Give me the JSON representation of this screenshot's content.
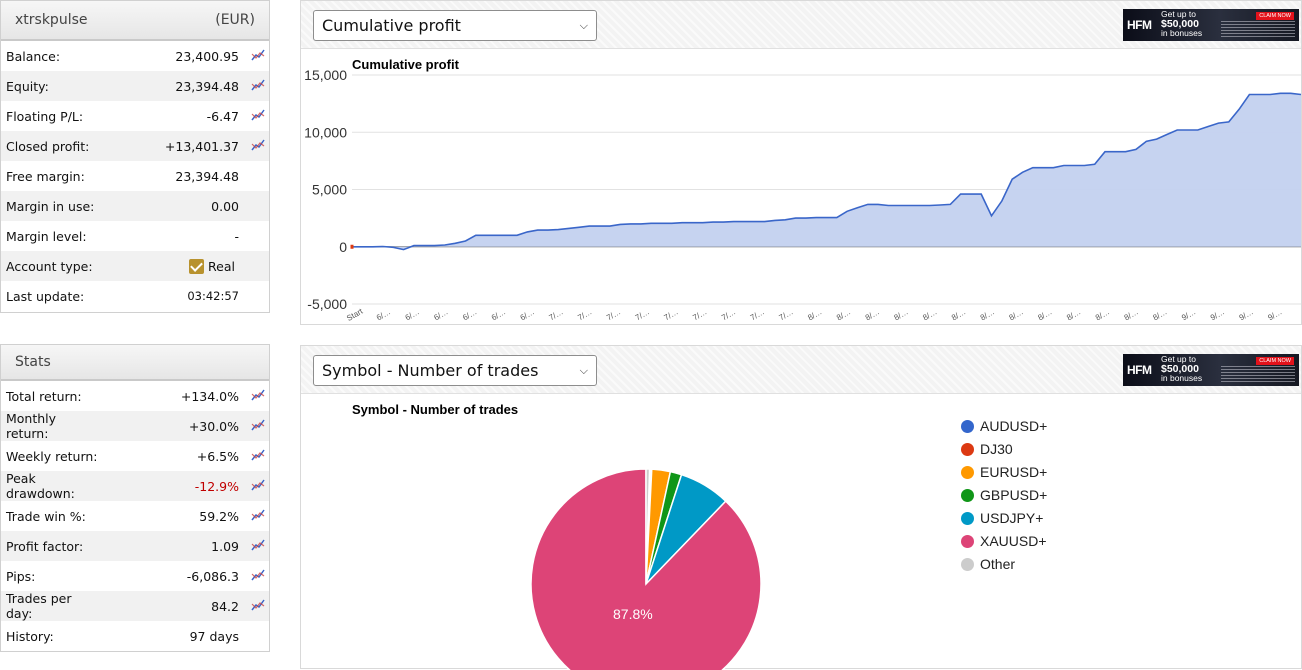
{
  "account": {
    "name": "xtrskpulse",
    "currency": "(EUR)",
    "rows": [
      {
        "label": "Balance:",
        "value": "23,400.95",
        "chart": true
      },
      {
        "label": "Equity:",
        "value": "23,394.48",
        "chart": true
      },
      {
        "label": "Floating P/L:",
        "value": "-6.47",
        "chart": true
      },
      {
        "label": "Closed profit:",
        "value": "+13,401.37",
        "chart": true
      },
      {
        "label": "Free margin:",
        "value": "23,394.48",
        "chart": false
      },
      {
        "label": "Margin in use:",
        "value": "0.00",
        "chart": false
      },
      {
        "label": "Margin level:",
        "value": "-",
        "chart": false
      },
      {
        "label": "Account type:",
        "value": "Real",
        "chart": false,
        "checkbox": true
      },
      {
        "label": "Last update:",
        "value": "03:42:57",
        "chart": false,
        "small": true
      }
    ]
  },
  "stats": {
    "title": "Stats",
    "rows": [
      {
        "label": "Total return:",
        "value": "+134.0%",
        "chart": true
      },
      {
        "label": "Monthly return:",
        "value": "+30.0%",
        "chart": true
      },
      {
        "label": "Weekly return:",
        "value": "+6.5%",
        "chart": true
      },
      {
        "label": "Peak drawdown:",
        "value": "-12.9%",
        "chart": true,
        "negative": true
      },
      {
        "label": "Trade win %:",
        "value": "59.2%",
        "chart": true
      },
      {
        "label": "Profit factor:",
        "value": "1.09",
        "chart": true
      },
      {
        "label": "Pips:",
        "value": "-6,086.3",
        "chart": true
      },
      {
        "label": "Trades per day:",
        "value": "84.2",
        "chart": true
      },
      {
        "label": "History:",
        "value": "97 days",
        "chart": false
      }
    ]
  },
  "colors": {
    "line": "#3a66c9",
    "area": "#c3d1ef",
    "chart_icon": "#3a66c9"
  },
  "ad": {
    "logo": "HFM",
    "line1": "Get up to",
    "line2": "$50,000",
    "line3": "in bonuses",
    "cta": "CLAIM NOW"
  },
  "chart_data": [
    {
      "type": "area",
      "selector_label": "Cumulative profit",
      "title": "Cumulative profit",
      "ylim": [
        -5000,
        15000
      ],
      "yticks": [
        -5000,
        0,
        5000,
        10000,
        15000
      ],
      "ytick_labels": [
        "-5,000",
        "0",
        "5,000",
        "10,000",
        "15,000"
      ],
      "xtick_labels": [
        "Start",
        "6/…",
        "6/…",
        "6/…",
        "6/…",
        "6/…",
        "6/…",
        "7/…",
        "7/…",
        "7/…",
        "7/…",
        "7/…",
        "7/…",
        "7/…",
        "7/…",
        "7/…",
        "8/…",
        "8/…",
        "8/…",
        "8/…",
        "8/…",
        "8/…",
        "8/…",
        "8/…",
        "8/…",
        "8/…",
        "8/…",
        "8/…",
        "8/…",
        "9/…",
        "9/…",
        "9/…",
        "9/…"
      ],
      "y": [
        0,
        0,
        0,
        20,
        -50,
        -250,
        100,
        100,
        100,
        150,
        300,
        500,
        1000,
        1000,
        1000,
        1000,
        1000,
        1300,
        1450,
        1450,
        1500,
        1600,
        1700,
        1800,
        1800,
        1800,
        1950,
        2000,
        2000,
        2050,
        2050,
        2050,
        2100,
        2100,
        2100,
        2150,
        2150,
        2200,
        2200,
        2200,
        2200,
        2300,
        2350,
        2500,
        2500,
        2550,
        2550,
        2550,
        3100,
        3400,
        3700,
        3700,
        3600,
        3600,
        3600,
        3600,
        3600,
        3650,
        3700,
        4600,
        4600,
        4600,
        2700,
        4000,
        5900,
        6500,
        6900,
        6900,
        6900,
        7100,
        7100,
        7100,
        7200,
        8300,
        8300,
        8300,
        8500,
        9200,
        9400,
        9800,
        10200,
        10200,
        10200,
        10500,
        10800,
        10900,
        12000,
        13300,
        13300,
        13300,
        13400,
        13400,
        13300
      ]
    },
    {
      "type": "pie",
      "selector_label": "Symbol - Number of trades",
      "title": "Symbol - Number of trades",
      "categories": [
        "AUDUSD+",
        "DJ30",
        "EURUSD+",
        "GBPUSD+",
        "USDJPY+",
        "XAUUSD+",
        "Other"
      ],
      "values": [
        0.2,
        0.1,
        2.6,
        1.6,
        7.2,
        87.8,
        0.5
      ],
      "colors": [
        "#3366cc",
        "#dc3912",
        "#ff9900",
        "#109618",
        "#0099c6",
        "#dd4477",
        "#cccccc"
      ],
      "slice_label": "87.8%"
    }
  ]
}
